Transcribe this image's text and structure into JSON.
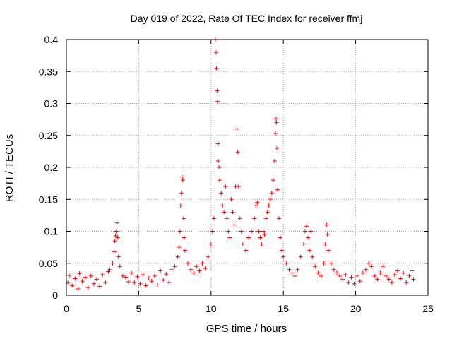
{
  "chart_data": {
    "type": "scatter",
    "title": "Day 019 of 2022, Rate Of TEC Index for receiver ffmj",
    "xlabel": "GPS time / hours",
    "ylabel": "ROTI / TECUs",
    "xlim": [
      0,
      25
    ],
    "ylim": [
      0,
      0.4
    ],
    "xticks": [
      0,
      5,
      10,
      15,
      20,
      25
    ],
    "xtick_labels": [
      "0",
      "5",
      "10",
      "15",
      "20",
      "25"
    ],
    "yticks": [
      0,
      0.05,
      0.1,
      0.15,
      0.2,
      0.25,
      0.3,
      0.35,
      0.4
    ],
    "ytick_labels": [
      "0",
      "0.05",
      "0.1",
      "0.15",
      "0.2",
      "0.25",
      "0.3",
      "0.35",
      "0.4"
    ],
    "grid": true,
    "marker": "+",
    "color": "#ff0000",
    "series": [
      {
        "name": "ROTI",
        "points": [
          [
            0.1,
            0.02
          ],
          [
            0.2,
            0.031
          ],
          [
            0.4,
            0.015
          ],
          [
            0.6,
            0.026
          ],
          [
            0.8,
            0.01
          ],
          [
            0.9,
            0.034
          ],
          [
            1.1,
            0.022
          ],
          [
            1.3,
            0.028
          ],
          [
            1.5,
            0.012
          ],
          [
            1.7,
            0.03
          ],
          [
            1.9,
            0.018
          ],
          [
            2.1,
            0.025
          ],
          [
            2.3,
            0.014
          ],
          [
            2.5,
            0.032
          ],
          [
            2.7,
            0.02
          ],
          [
            2.9,
            0.037
          ],
          [
            3.0,
            0.04
          ],
          [
            3.2,
            0.05
          ],
          [
            3.3,
            0.068
          ],
          [
            3.35,
            0.085
          ],
          [
            3.4,
            0.093
          ],
          [
            3.45,
            0.1
          ],
          [
            3.5,
            0.113
          ],
          [
            3.55,
            0.09
          ],
          [
            3.6,
            0.06
          ],
          [
            3.7,
            0.045
          ],
          [
            3.9,
            0.03
          ],
          [
            4.1,
            0.028
          ],
          [
            4.3,
            0.021
          ],
          [
            4.5,
            0.035
          ],
          [
            4.7,
            0.02
          ],
          [
            4.9,
            0.029
          ],
          [
            5.1,
            0.018
          ],
          [
            5.3,
            0.032
          ],
          [
            5.5,
            0.015
          ],
          [
            5.7,
            0.027
          ],
          [
            5.9,
            0.022
          ],
          [
            6.1,
            0.03
          ],
          [
            6.3,
            0.016
          ],
          [
            6.5,
            0.038
          ],
          [
            6.7,
            0.024
          ],
          [
            6.9,
            0.033
          ],
          [
            7.1,
            0.02
          ],
          [
            7.3,
            0.04
          ],
          [
            7.5,
            0.045
          ],
          [
            7.7,
            0.06
          ],
          [
            7.8,
            0.075
          ],
          [
            7.85,
            0.1
          ],
          [
            7.9,
            0.14
          ],
          [
            7.95,
            0.16
          ],
          [
            8.0,
            0.185
          ],
          [
            8.05,
            0.18
          ],
          [
            8.1,
            0.12
          ],
          [
            8.15,
            0.09
          ],
          [
            8.2,
            0.07
          ],
          [
            8.4,
            0.05
          ],
          [
            8.6,
            0.04
          ],
          [
            8.8,
            0.035
          ],
          [
            9.0,
            0.045
          ],
          [
            9.2,
            0.038
          ],
          [
            9.4,
            0.05
          ],
          [
            9.6,
            0.042
          ],
          [
            9.8,
            0.06
          ],
          [
            10.0,
            0.08
          ],
          [
            10.1,
            0.1
          ],
          [
            10.2,
            0.12
          ],
          [
            10.3,
            0.4
          ],
          [
            10.35,
            0.38
          ],
          [
            10.38,
            0.355
          ],
          [
            10.42,
            0.32
          ],
          [
            10.45,
            0.303
          ],
          [
            10.48,
            0.237
          ],
          [
            10.5,
            0.21
          ],
          [
            10.55,
            0.2
          ],
          [
            10.6,
            0.18
          ],
          [
            10.7,
            0.16
          ],
          [
            10.8,
            0.14
          ],
          [
            10.9,
            0.13
          ],
          [
            11.0,
            0.17
          ],
          [
            11.1,
            0.12
          ],
          [
            11.2,
            0.1
          ],
          [
            11.3,
            0.09
          ],
          [
            11.4,
            0.15
          ],
          [
            11.5,
            0.13
          ],
          [
            11.6,
            0.11
          ],
          [
            11.7,
            0.17
          ],
          [
            11.8,
            0.26
          ],
          [
            11.85,
            0.224
          ],
          [
            11.9,
            0.17
          ],
          [
            12.0,
            0.12
          ],
          [
            12.1,
            0.1
          ],
          [
            12.2,
            0.08
          ],
          [
            12.4,
            0.07
          ],
          [
            12.6,
            0.09
          ],
          [
            12.8,
            0.1
          ],
          [
            13.0,
            0.12
          ],
          [
            13.1,
            0.14
          ],
          [
            13.2,
            0.145
          ],
          [
            13.3,
            0.1
          ],
          [
            13.4,
            0.09
          ],
          [
            13.5,
            0.08
          ],
          [
            13.6,
            0.1
          ],
          [
            13.7,
            0.095
          ],
          [
            13.8,
            0.12
          ],
          [
            13.9,
            0.13
          ],
          [
            14.0,
            0.14
          ],
          [
            14.1,
            0.15
          ],
          [
            14.2,
            0.16
          ],
          [
            14.3,
            0.18
          ],
          [
            14.4,
            0.21
          ],
          [
            14.45,
            0.253
          ],
          [
            14.5,
            0.276
          ],
          [
            14.52,
            0.27
          ],
          [
            14.55,
            0.23
          ],
          [
            14.6,
            0.165
          ],
          [
            14.7,
            0.12
          ],
          [
            14.8,
            0.09
          ],
          [
            14.9,
            0.07
          ],
          [
            15.0,
            0.06
          ],
          [
            15.2,
            0.05
          ],
          [
            15.4,
            0.04
          ],
          [
            15.6,
            0.035
          ],
          [
            15.8,
            0.03
          ],
          [
            16.0,
            0.04
          ],
          [
            16.2,
            0.06
          ],
          [
            16.4,
            0.08
          ],
          [
            16.5,
            0.1
          ],
          [
            16.6,
            0.108
          ],
          [
            16.7,
            0.09
          ],
          [
            16.8,
            0.07
          ],
          [
            16.9,
            0.1
          ],
          [
            17.0,
            0.06
          ],
          [
            17.2,
            0.045
          ],
          [
            17.4,
            0.035
          ],
          [
            17.6,
            0.03
          ],
          [
            17.8,
            0.05
          ],
          [
            17.9,
            0.08
          ],
          [
            18.0,
            0.11
          ],
          [
            18.05,
            0.095
          ],
          [
            18.1,
            0.07
          ],
          [
            18.3,
            0.05
          ],
          [
            18.5,
            0.04
          ],
          [
            18.7,
            0.035
          ],
          [
            18.9,
            0.03
          ],
          [
            19.1,
            0.025
          ],
          [
            19.3,
            0.032
          ],
          [
            19.5,
            0.02
          ],
          [
            19.7,
            0.028
          ],
          [
            19.9,
            0.018
          ],
          [
            20.1,
            0.03
          ],
          [
            20.3,
            0.022
          ],
          [
            20.5,
            0.035
          ],
          [
            20.7,
            0.04
          ],
          [
            20.9,
            0.05
          ],
          [
            21.1,
            0.045
          ],
          [
            21.3,
            0.03
          ],
          [
            21.5,
            0.025
          ],
          [
            21.7,
            0.035
          ],
          [
            21.9,
            0.045
          ],
          [
            22.1,
            0.03
          ],
          [
            22.3,
            0.025
          ],
          [
            22.5,
            0.02
          ],
          [
            22.7,
            0.032
          ],
          [
            22.9,
            0.038
          ],
          [
            23.1,
            0.026
          ],
          [
            23.3,
            0.035
          ],
          [
            23.5,
            0.02
          ],
          [
            23.7,
            0.03
          ],
          [
            23.9,
            0.038
          ],
          [
            24.0,
            0.025
          ]
        ]
      }
    ]
  }
}
